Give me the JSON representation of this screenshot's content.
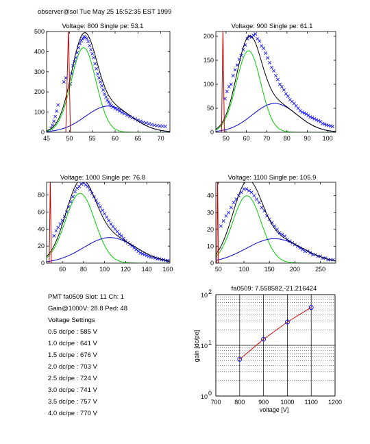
{
  "header": {
    "text": "observer@sol  Tue May 25 15:52:35 EST 1999"
  },
  "info": {
    "lines": [
      "PMT fa0509 Slot: 11 Ch: 1",
      "Gain@1000V: 28.8 Ped: 48",
      "Voltage Settings",
      "0.5 dc/pe : 585 V",
      "1.0 dc/pe : 641 V",
      "1.5 dc/pe : 676 V",
      "2.0 dc/pe : 703 V",
      "2.5 dc/pe : 724 V",
      "3.0 dc/pe : 741 V",
      "3.5 dc/pe : 757 V",
      "4.0 dc/pe : 770 V"
    ]
  },
  "colors": {
    "data": "#0000ff",
    "signal": "#00cc00",
    "background": "#0000cc",
    "total": "#000000",
    "pedestal": "#cc0000",
    "fit": "#cc0000"
  },
  "chart_data": [
    {
      "type": "scatter",
      "title": "Voltage: 800 Single pe: 53.1",
      "xlim": [
        45,
        72
      ],
      "ylim": [
        0,
        500
      ],
      "xticks": [
        45,
        50,
        55,
        60,
        65,
        70
      ],
      "yticks": [
        0,
        100,
        200,
        300,
        400,
        500
      ],
      "pedestal": {
        "x0": 49.2,
        "x1": 50.2,
        "peak_x": 49.8,
        "over_y": 520
      },
      "signal": {
        "amp": 420,
        "mu": 53.1,
        "sigma": 2.7
      },
      "background": {
        "amp": 130,
        "mu": 58.5,
        "sigma": 5.0
      },
      "points": [
        [
          46,
          20
        ],
        [
          46.3,
          35
        ],
        [
          46.6,
          55
        ],
        [
          46.9,
          78
        ],
        [
          47.2,
          105
        ],
        [
          47.5,
          135
        ],
        [
          48.8,
          250
        ],
        [
          49.2,
          270
        ],
        [
          50.2,
          240
        ],
        [
          50.5,
          290
        ],
        [
          50.8,
          330
        ],
        [
          51.1,
          350
        ],
        [
          51.4,
          370
        ],
        [
          51.7,
          395
        ],
        [
          52,
          420
        ],
        [
          52.3,
          440
        ],
        [
          52.6,
          455
        ],
        [
          52.9,
          465
        ],
        [
          53.2,
          475
        ],
        [
          53.5,
          470
        ],
        [
          53.8,
          465
        ],
        [
          54.1,
          450
        ],
        [
          54.4,
          430
        ],
        [
          54.7,
          410
        ],
        [
          55,
          390
        ],
        [
          55.3,
          370
        ],
        [
          55.6,
          340
        ],
        [
          55.9,
          315
        ],
        [
          56.2,
          290
        ],
        [
          56.5,
          270
        ],
        [
          56.8,
          250
        ],
        [
          57.1,
          230
        ],
        [
          57.4,
          210
        ],
        [
          57.7,
          190
        ],
        [
          58,
          175
        ],
        [
          58.3,
          160
        ],
        [
          58.6,
          150
        ],
        [
          58.9,
          140
        ],
        [
          59.2,
          132
        ],
        [
          59.5,
          125
        ],
        [
          60,
          118
        ],
        [
          60.5,
          112
        ],
        [
          61,
          105
        ],
        [
          61.5,
          98
        ],
        [
          62,
          92
        ],
        [
          62.6,
          85
        ],
        [
          63.2,
          78
        ],
        [
          63.8,
          72
        ],
        [
          64.4,
          66
        ],
        [
          65,
          60
        ],
        [
          65.6,
          55
        ],
        [
          66.2,
          50
        ],
        [
          66.8,
          46
        ],
        [
          67.4,
          42
        ],
        [
          68,
          38
        ],
        [
          68.6,
          35
        ],
        [
          69.2,
          33
        ],
        [
          69.8,
          31
        ],
        [
          70.4,
          30
        ],
        [
          71,
          29
        ]
      ]
    },
    {
      "type": "scatter",
      "title": "Voltage: 900 Single pe: 61.1",
      "xlim": [
        45,
        104
      ],
      "ylim": [
        0,
        210
      ],
      "xticks": [
        50,
        60,
        70,
        80,
        90,
        100
      ],
      "yticks": [
        0,
        50,
        100,
        150,
        200
      ],
      "pedestal": {
        "x0": 47.8,
        "x1": 49.2,
        "peak_x": 48.5,
        "over_y": 220
      },
      "signal": {
        "amp": 170,
        "mu": 61.1,
        "sigma": 6.0
      },
      "background": {
        "amp": 60,
        "mu": 74,
        "sigma": 11
      },
      "points": [
        [
          49.5,
          70
        ],
        [
          50.5,
          85
        ],
        [
          51.5,
          95
        ],
        [
          52.5,
          100
        ],
        [
          53.5,
          118
        ],
        [
          54.5,
          130
        ],
        [
          55.5,
          140
        ],
        [
          56.5,
          152
        ],
        [
          57.5,
          160
        ],
        [
          58.5,
          172
        ],
        [
          59.5,
          182
        ],
        [
          60.5,
          195
        ],
        [
          61.5,
          200
        ],
        [
          62.5,
          198
        ],
        [
          63.5,
          202
        ],
        [
          64.5,
          205
        ],
        [
          65.5,
          195
        ],
        [
          66.5,
          190
        ],
        [
          67.5,
          180
        ],
        [
          68.5,
          175
        ],
        [
          69.5,
          165
        ],
        [
          70.5,
          155
        ],
        [
          71.5,
          145
        ],
        [
          72.5,
          135
        ],
        [
          73.5,
          128
        ],
        [
          74.5,
          118
        ],
        [
          75.5,
          110
        ],
        [
          76.5,
          100
        ],
        [
          77.5,
          95
        ],
        [
          78.5,
          88
        ],
        [
          79.5,
          80
        ],
        [
          80.5,
          75
        ],
        [
          81.5,
          68
        ],
        [
          82.5,
          64
        ],
        [
          83.5,
          60
        ],
        [
          84.5,
          55
        ],
        [
          85.5,
          50
        ],
        [
          86.5,
          45
        ],
        [
          87.5,
          42
        ],
        [
          88.5,
          40
        ],
        [
          89.5,
          38
        ],
        [
          90.5,
          35
        ],
        [
          91.5,
          32
        ],
        [
          92.5,
          30
        ],
        [
          93.5,
          28
        ],
        [
          94.5,
          26
        ],
        [
          95.5,
          24
        ],
        [
          96.5,
          22
        ],
        [
          97.5,
          18
        ],
        [
          98.5,
          17
        ],
        [
          99.5,
          15
        ],
        [
          100.5,
          14
        ],
        [
          101.5,
          13
        ],
        [
          102.5,
          12
        ]
      ]
    },
    {
      "type": "scatter",
      "title": "Voltage: 1000 Single pe: 76.8",
      "xlim": [
        45,
        162
      ],
      "ylim": [
        0,
        95
      ],
      "xticks": [
        60,
        80,
        100,
        120,
        140,
        160
      ],
      "yticks": [
        0,
        20,
        40,
        60,
        80
      ],
      "pedestal": {
        "x0": 47.5,
        "x1": 49.5,
        "peak_x": 48.5,
        "over_y": 100
      },
      "signal": {
        "amp": 82,
        "mu": 76.8,
        "sigma": 14
      },
      "background": {
        "amp": 30,
        "mu": 105,
        "sigma": 25
      },
      "points": [
        [
          52,
          32
        ],
        [
          54,
          38
        ],
        [
          56,
          42
        ],
        [
          58,
          46
        ],
        [
          60,
          50
        ],
        [
          62,
          55
        ],
        [
          64,
          60
        ],
        [
          66,
          66
        ],
        [
          68,
          72
        ],
        [
          70,
          78
        ],
        [
          72,
          84
        ],
        [
          74,
          88
        ],
        [
          76,
          90
        ],
        [
          78,
          93
        ],
        [
          80,
          95
        ],
        [
          82,
          92
        ],
        [
          84,
          90
        ],
        [
          86,
          86
        ],
        [
          88,
          82
        ],
        [
          90,
          78
        ],
        [
          92,
          74
        ],
        [
          94,
          70
        ],
        [
          96,
          66
        ],
        [
          98,
          62
        ],
        [
          100,
          58
        ],
        [
          102,
          54
        ],
        [
          104,
          50
        ],
        [
          106,
          46
        ],
        [
          108,
          43
        ],
        [
          110,
          40
        ],
        [
          112,
          37
        ],
        [
          114,
          34
        ],
        [
          116,
          32
        ],
        [
          118,
          29
        ],
        [
          120,
          26
        ],
        [
          122,
          24
        ],
        [
          124,
          22
        ],
        [
          126,
          20
        ],
        [
          128,
          18
        ],
        [
          130,
          16
        ],
        [
          132,
          14
        ],
        [
          134,
          12
        ],
        [
          136,
          11
        ],
        [
          138,
          10
        ],
        [
          140,
          9
        ],
        [
          142,
          8
        ],
        [
          144,
          7
        ],
        [
          146,
          7
        ],
        [
          148,
          6
        ],
        [
          150,
          5
        ],
        [
          152,
          5
        ],
        [
          154,
          4
        ],
        [
          156,
          4
        ],
        [
          158,
          3
        ],
        [
          160,
          3
        ]
      ]
    },
    {
      "type": "scatter",
      "title": "Voltage: 1100 Single pe: 105.9",
      "xlim": [
        45,
        280
      ],
      "ylim": [
        0,
        48
      ],
      "xticks": [
        50,
        100,
        150,
        200,
        250
      ],
      "yticks": [
        0,
        10,
        20,
        30,
        40
      ],
      "pedestal": {
        "x0": 47,
        "x1": 50,
        "peak_x": 48.5,
        "over_y": 50
      },
      "signal": {
        "amp": 40,
        "mu": 105.9,
        "sigma": 28
      },
      "background": {
        "amp": 14.5,
        "mu": 160,
        "sigma": 55
      },
      "points": [
        [
          55,
          22
        ],
        [
          60,
          25
        ],
        [
          65,
          28
        ],
        [
          70,
          30
        ],
        [
          75,
          33
        ],
        [
          80,
          36
        ],
        [
          85,
          38
        ],
        [
          90,
          40
        ],
        [
          95,
          42
        ],
        [
          100,
          44
        ],
        [
          105,
          44
        ],
        [
          110,
          43
        ],
        [
          115,
          42
        ],
        [
          120,
          40
        ],
        [
          125,
          38
        ],
        [
          130,
          36
        ],
        [
          135,
          33
        ],
        [
          140,
          31
        ],
        [
          145,
          28
        ],
        [
          150,
          26
        ],
        [
          155,
          24
        ],
        [
          160,
          22
        ],
        [
          165,
          20
        ],
        [
          170,
          18
        ],
        [
          175,
          17
        ],
        [
          180,
          16
        ],
        [
          185,
          14
        ],
        [
          190,
          13
        ],
        [
          195,
          12
        ],
        [
          200,
          11
        ],
        [
          205,
          10
        ],
        [
          210,
          9
        ],
        [
          215,
          8
        ],
        [
          220,
          7
        ],
        [
          225,
          7
        ],
        [
          230,
          6
        ],
        [
          235,
          5
        ],
        [
          240,
          5
        ],
        [
          245,
          4
        ],
        [
          250,
          4
        ],
        [
          255,
          3
        ],
        [
          260,
          3
        ],
        [
          265,
          2
        ],
        [
          270,
          2
        ],
        [
          275,
          2
        ]
      ]
    },
    {
      "type": "line",
      "title": "fa0509: 7.558582,-21.216424",
      "xlabel": "voltage [V]",
      "ylabel": "gain [dc/pe]",
      "xlim": [
        700,
        1200
      ],
      "ylim": [
        1,
        100
      ],
      "yscale": "log",
      "grid": true,
      "xticks": [
        700,
        800,
        900,
        1000,
        1100,
        1200
      ],
      "ytick_labels": [
        {
          "value": 1,
          "base": "10",
          "exp": "0"
        },
        {
          "value": 10,
          "base": "10",
          "exp": "1"
        },
        {
          "value": 100,
          "base": "10",
          "exp": "2"
        }
      ],
      "x": [
        800,
        900,
        1000,
        1100
      ],
      "y": [
        5.3,
        13.2,
        28.8,
        56
      ]
    }
  ]
}
